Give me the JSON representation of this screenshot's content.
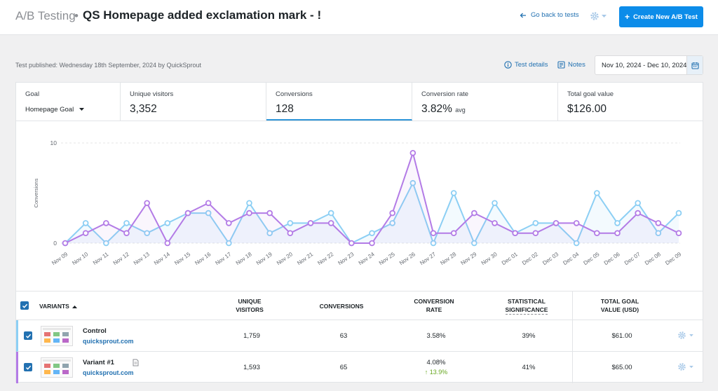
{
  "header": {
    "section": "A/B Testing",
    "separator": "•",
    "title": "QS Homepage added exclamation mark - !",
    "back_link": "Go back to tests",
    "create_button": "Create New A/B Test"
  },
  "subheader": {
    "published": "Test published: Wednesday 18th September, 2024 by QuickSprout",
    "test_details": "Test details",
    "notes": "Notes",
    "date_range": "Nov 10, 2024 - Dec 10, 2024"
  },
  "stats": {
    "goal_label": "Goal",
    "goal_value": "Homepage Goal",
    "visitors_label": "Unique visitors",
    "visitors_value": "3,352",
    "conversions_label": "Conversions",
    "conversions_value": "128",
    "rate_label": "Conversion rate",
    "rate_value": "3.82%",
    "rate_suffix": "avg",
    "goal_total_label": "Total goal value",
    "goal_total_value": "$126.00"
  },
  "chart_data": {
    "type": "line",
    "ylabel": "Conversions",
    "ylim": [
      0,
      10
    ],
    "yticks": [
      "0",
      "10"
    ],
    "categories": [
      "Nov 09",
      "Nov 10",
      "Nov 11",
      "Nov 12",
      "Nov 13",
      "Nov 14",
      "Nov 15",
      "Nov 16",
      "Nov 17",
      "Nov 18",
      "Nov 19",
      "Nov 20",
      "Nov 21",
      "Nov 22",
      "Nov 23",
      "Nov 24",
      "Nov 25",
      "Nov 26",
      "Nov 27",
      "Nov 28",
      "Nov 29",
      "Nov 30",
      "Dec 01",
      "Dec 02",
      "Dec 03",
      "Dec 04",
      "Dec 05",
      "Dec 06",
      "Dec 07",
      "Dec 08",
      "Dec 09"
    ],
    "series": [
      {
        "color": "#8ccff4",
        "values": [
          0,
          2,
          0,
          2,
          1,
          2,
          3,
          3,
          0,
          4,
          1,
          2,
          2,
          3,
          0,
          1,
          2,
          6,
          0,
          5,
          0,
          4,
          1,
          2,
          2,
          0,
          5,
          2,
          4,
          1,
          3
        ]
      },
      {
        "color": "#b37be6",
        "values": [
          0,
          1,
          2,
          1,
          4,
          0,
          3,
          4,
          2,
          3,
          3,
          1,
          2,
          2,
          0,
          0,
          3,
          9,
          1,
          1,
          3,
          2,
          1,
          1,
          2,
          2,
          1,
          1,
          3,
          2,
          1
        ]
      }
    ]
  },
  "table": {
    "headers": {
      "variants": "VARIANTS",
      "visitors_1": "UNIQUE",
      "visitors_2": "VISITORS",
      "conversions": "CONVERSIONS",
      "rate_1": "CONVERSION",
      "rate_2": "RATE",
      "sig_1": "STATISTICAL",
      "sig_2": "SIGNIFICANCE",
      "value_1": "TOTAL GOAL",
      "value_2": "VALUE (USD)"
    },
    "rows": [
      {
        "name": "Control",
        "url": "quicksprout.com",
        "visitors": "1,759",
        "conversions": "63",
        "rate": "3.58%",
        "lift": "",
        "significance": "39%",
        "value": "$61.00"
      },
      {
        "name": "Variant #1",
        "url": "quicksprout.com",
        "visitors": "1,593",
        "conversions": "65",
        "rate": "4.08%",
        "lift": "↑ 13.9%",
        "significance": "41%",
        "value": "$65.00"
      }
    ]
  },
  "colors": {
    "primary": "#0c8ce9",
    "link": "#2271b1",
    "control": "#8ccff4",
    "variant": "#b37be6",
    "lift": "#68a822"
  }
}
